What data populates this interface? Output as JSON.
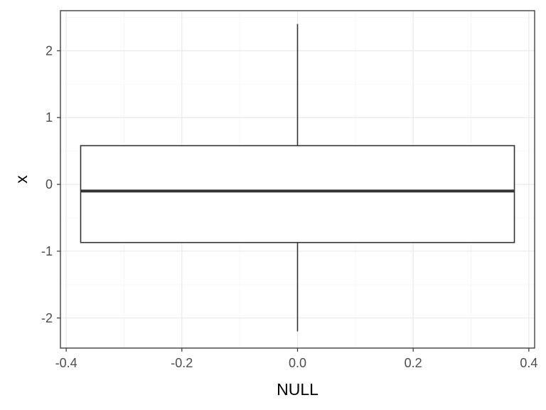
{
  "chart_data": {
    "type": "boxplot",
    "xlabel": "NULL",
    "ylabel": "x",
    "xlim": [
      -0.41,
      0.41
    ],
    "ylim": [
      -2.45,
      2.6
    ],
    "x_ticks": [
      -0.4,
      -0.2,
      0.0,
      0.2,
      0.4
    ],
    "x_tick_labels": [
      "-0.4",
      "-0.2",
      "0.0",
      "0.2",
      "0.4"
    ],
    "y_ticks": [
      -2,
      -1,
      0,
      1,
      2
    ],
    "y_tick_labels": [
      "-2",
      "-1",
      "0",
      "1",
      "2"
    ],
    "grid": true,
    "box": {
      "x_left": -0.375,
      "x_right": 0.375,
      "x_center": 0.0,
      "whisker_low": -2.2,
      "q1": -0.87,
      "median": -0.1,
      "q3": 0.58,
      "whisker_high": 2.4
    },
    "colors": {
      "panel_border": "#333333",
      "grid_major": "#ebebeb",
      "grid_minor": "#f5f5f5",
      "box_line": "#333333",
      "box_fill": "#ffffff",
      "tick_text": "#4d4d4d"
    }
  }
}
